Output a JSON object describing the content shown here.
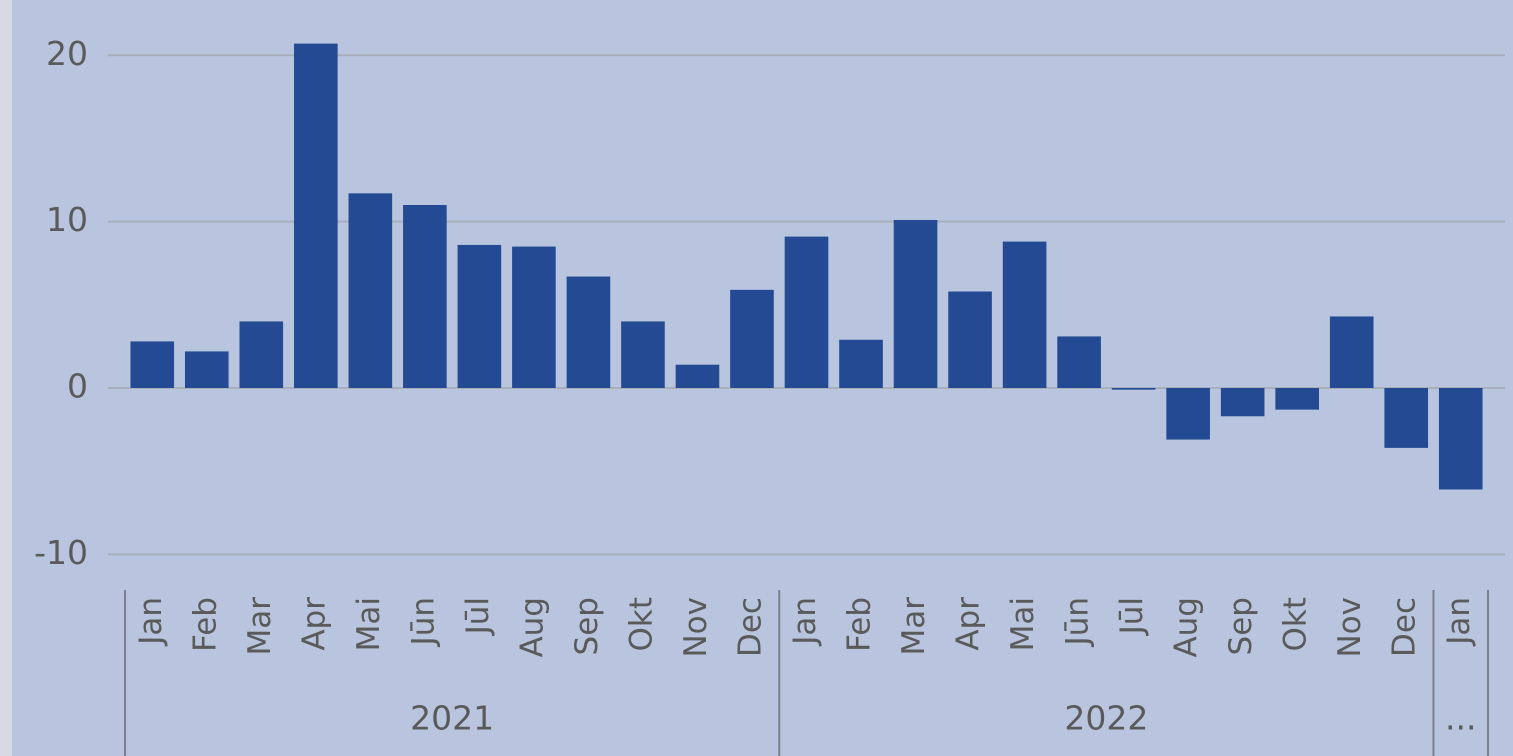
{
  "chart_data": {
    "type": "bar",
    "categories": [
      "Jan",
      "Feb",
      "Mar",
      "Apr",
      "Mai",
      "Jūn",
      "Jūl",
      "Aug",
      "Sep",
      "Okt",
      "Nov",
      "Dec",
      "Jan",
      "Feb",
      "Mar",
      "Apr",
      "Mai",
      "Jūn",
      "Jūl",
      "Aug",
      "Sep",
      "Okt",
      "Nov",
      "Dec",
      "Jan"
    ],
    "values": [
      2.8,
      2.2,
      4.0,
      20.7,
      11.7,
      11.0,
      8.6,
      8.5,
      6.7,
      4.0,
      1.4,
      5.9,
      9.1,
      2.9,
      10.1,
      5.8,
      8.8,
      3.1,
      -0.1,
      -3.1,
      -1.7,
      -1.3,
      4.3,
      -3.6,
      -6.1
    ],
    "groups": [
      {
        "label": "2021",
        "span": 12
      },
      {
        "label": "2022",
        "span": 12
      },
      {
        "label": "...",
        "span": 1
      }
    ],
    "color": "#234a93",
    "ylim": [
      -11,
      22
    ],
    "yticks": [
      -10,
      0,
      10,
      20
    ],
    "grid": true
  }
}
